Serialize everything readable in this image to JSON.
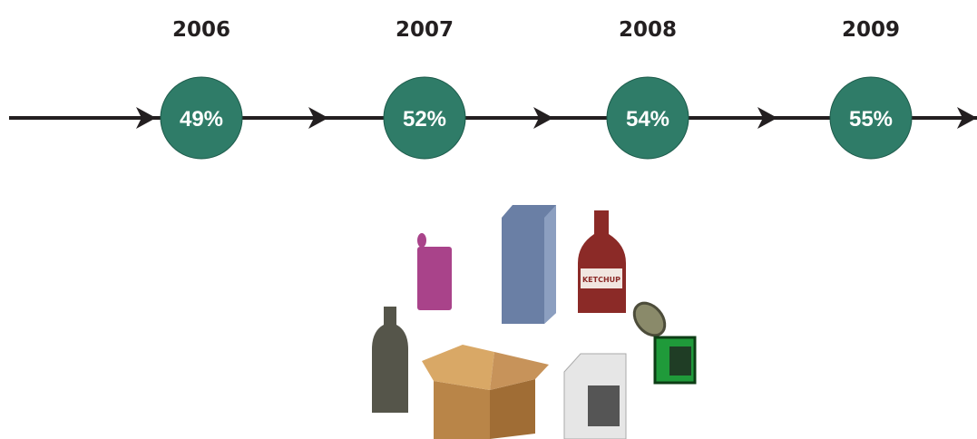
{
  "timeline": {
    "items": [
      {
        "year": "2006",
        "value": "49%"
      },
      {
        "year": "2007",
        "value": "52%"
      },
      {
        "year": "2008",
        "value": "54%"
      },
      {
        "year": "2009",
        "value": "55%"
      }
    ]
  },
  "illustration": {
    "ketchup_label": "KETCHUP"
  }
}
